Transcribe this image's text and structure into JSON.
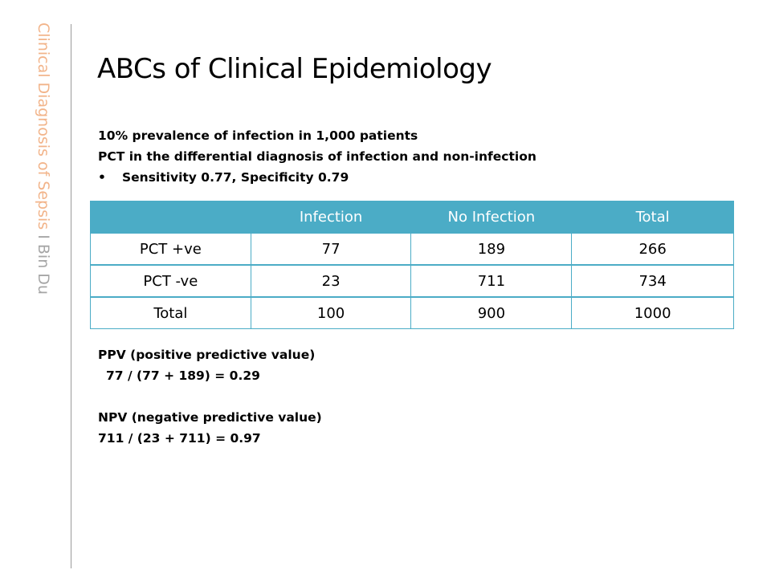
{
  "sidebar": {
    "course": "Clinical Diagnosis of Sepsis",
    "author": " I Bin Du"
  },
  "title": "ABCs of Clinical Epidemiology",
  "intro": {
    "line1": "10% prevalence of infection in 1,000 patients",
    "line2": "PCT in the differential diagnosis of infection and non-infection",
    "bullet_symbol": "•",
    "bullet": "Sensitivity 0.77, Specificity 0.79"
  },
  "table": {
    "headers": [
      "",
      "Infection",
      "No Infection",
      "Total"
    ],
    "rows": [
      [
        "PCT +ve",
        "77",
        "189",
        "266"
      ],
      [
        "PCT -ve",
        "23",
        "711",
        "734"
      ],
      [
        "Total",
        "100",
        "900",
        "1000"
      ]
    ]
  },
  "ppv": {
    "label": "PPV (positive predictive value)",
    "formula": "77 / (77 + 189) = 0.29"
  },
  "npv": {
    "label": "NPV (negative predictive value)",
    "formula": "711 / (23 + 711) = 0.97"
  },
  "colors": {
    "header_fill": "#4bacc6",
    "sidebar_accent": "#f2b48a",
    "sidebar_author": "#a6a6a6",
    "divider": "#9a9a9a"
  }
}
